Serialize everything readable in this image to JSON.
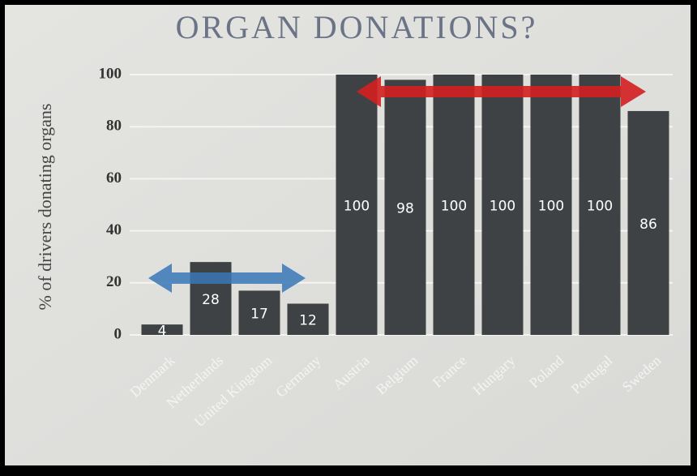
{
  "chart_data": {
    "type": "bar",
    "title": "ORGAN DONATIONS?",
    "y_label": "% of drivers donating organs",
    "categories": [
      "Denmark",
      "Netherlands",
      "United Kingdom",
      "Germany",
      "Austria",
      "Belgium",
      "France",
      "Hungary",
      "Poland",
      "Portugal",
      "Sweden"
    ],
    "values": [
      4,
      28,
      17,
      12,
      100,
      98,
      100,
      100,
      100,
      100,
      86
    ],
    "color": "#3f4244",
    "ylim": [
      0,
      100
    ],
    "yticks": [
      0,
      20,
      40,
      60,
      80,
      100
    ],
    "grid": true
  }
}
